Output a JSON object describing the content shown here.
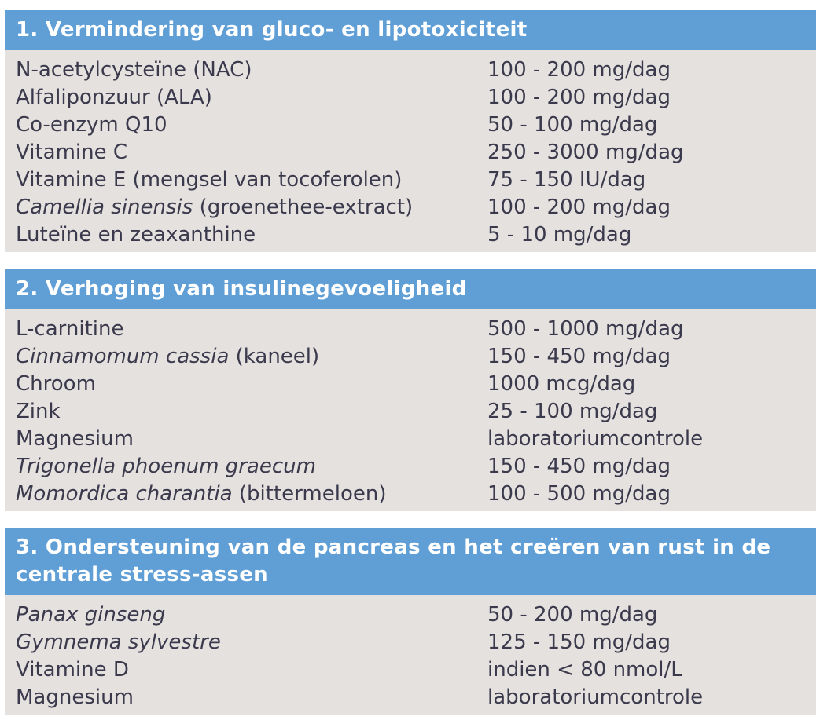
{
  "sections": [
    {
      "title": "1. Vermindering van gluco- en lipotoxiciteit",
      "rows": [
        {
          "italic": "",
          "name": "N-acetylcysteïne (NAC)",
          "dose": "100 - 200 mg/dag"
        },
        {
          "italic": "",
          "name": "Alfaliponzuur (ALA)",
          "dose": "100 - 200 mg/dag"
        },
        {
          "italic": "",
          "name": "Co-enzym Q10",
          "dose": "50 - 100 mg/dag"
        },
        {
          "italic": "",
          "name": "Vitamine C",
          "dose": "250 - 3000 mg/dag"
        },
        {
          "italic": "",
          "name": "Vitamine E (mengsel van tocoferolen)",
          "dose": "75 - 150 IU/dag"
        },
        {
          "italic": "Camellia sinensis",
          "name": " (groenethee-extract)",
          "dose": "100 - 200 mg/dag"
        },
        {
          "italic": "",
          "name": "Luteïne en zeaxanthine",
          "dose": "5 - 10 mg/dag"
        }
      ]
    },
    {
      "title": "2. Verhoging van insulinegevoeligheid",
      "rows": [
        {
          "italic": "",
          "name": "L-carnitine",
          "dose": "500 - 1000 mg/dag"
        },
        {
          "italic": "Cinnamomum cassia",
          "name": " (kaneel)",
          "dose": "150 - 450 mg/dag"
        },
        {
          "italic": "",
          "name": "Chroom",
          "dose": "1000 mcg/dag"
        },
        {
          "italic": "",
          "name": "Zink",
          "dose": "25 - 100 mg/dag"
        },
        {
          "italic": "",
          "name": "Magnesium",
          "dose": "laboratoriumcontrole"
        },
        {
          "italic": "Trigonella phoenum graecum",
          "name": "",
          "dose": "150 - 450 mg/dag"
        },
        {
          "italic": "Momordica charantia",
          "name": " (bittermeloen)",
          "dose": "100 - 500 mg/dag"
        }
      ]
    },
    {
      "title": "3. Ondersteuning van de pancreas en het creëren van rust in de centrale stress-assen",
      "rows": [
        {
          "italic": "Panax ginseng",
          "name": "",
          "dose": "50 - 200 mg/dag"
        },
        {
          "italic": "Gymnema sylvestre",
          "name": "",
          "dose": "125 - 150 mg/dag"
        },
        {
          "italic": "",
          "name": "Vitamine D",
          "dose": "indien < 80 nmol/L"
        },
        {
          "italic": "",
          "name": "Magnesium",
          "dose": "laboratoriumcontrole"
        }
      ]
    }
  ],
  "colors": {
    "header": "#5f9fd6",
    "body": "#e4e1df",
    "text": "#3b3a4c"
  }
}
